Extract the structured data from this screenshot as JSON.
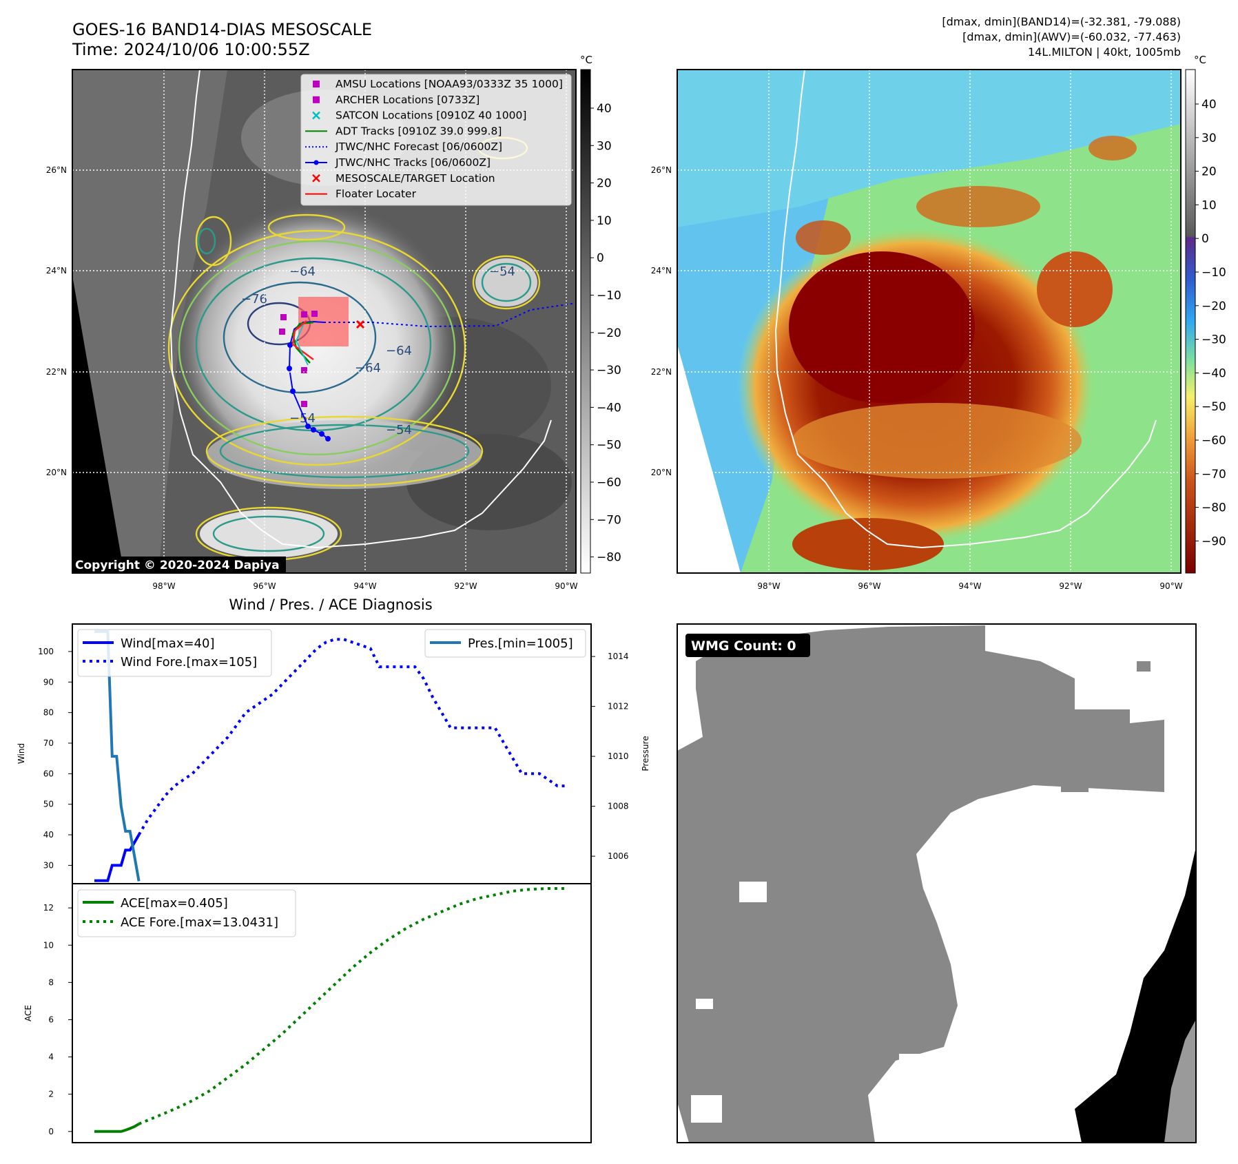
{
  "header": {
    "title": "GOES-16 BAND14-DIAS MESOSCALE",
    "time": "Time: 2024/10/06 10:00:55Z",
    "info_line1": "[dmax, dmin](BAND14)=(-32.381, -79.088)",
    "info_line2": "[dmax, dmin](AWV)=(-60.032, -77.463)",
    "info_line3": "14L.MILTON | 40kt, 1005mb"
  },
  "map": {
    "lat_labels": [
      "26°N",
      "24°N",
      "22°N",
      "20°N"
    ],
    "lon_labels": [
      "98°W",
      "96°W",
      "94°W",
      "92°W",
      "90°W"
    ],
    "copyright": "Copyright © 2020-2024 Dapiya",
    "colorbar_unit": "°C",
    "band14_ticks": [
      "40",
      "30",
      "20",
      "10",
      "0",
      "−10",
      "−20",
      "−30",
      "−40",
      "−50",
      "−60",
      "−70",
      "−80"
    ],
    "awv_ticks": [
      "40",
      "30",
      "20",
      "10",
      "0",
      "−10",
      "−20",
      "−30",
      "−40",
      "−50",
      "−60",
      "−70",
      "−80",
      "−90"
    ],
    "contour_labels": [
      "−76",
      "−64",
      "−64",
      "−64",
      "−54",
      "−54",
      "−54"
    ],
    "legend": [
      {
        "label": "AMSU Locations [NOAA93/0333Z 35 1000]",
        "color": "#c000c0",
        "marker": "square"
      },
      {
        "label": "ARCHER Locations [0733Z]",
        "color": "#c000c0",
        "marker": "square"
      },
      {
        "label": "SATCON Locations [0910Z 40 1000]",
        "color": "#00bfbf",
        "marker": "x"
      },
      {
        "label": "ADT Tracks [0910Z 39.0 999.8]",
        "color": "#008000",
        "marker": "line"
      },
      {
        "label": "JTWC/NHC Forecast [06/0600Z]",
        "color": "#0000ff",
        "marker": "dotted"
      },
      {
        "label": "JTWC/NHC Tracks [06/0600Z]",
        "color": "#0000ff",
        "marker": "line-dot"
      },
      {
        "label": "MESOSCALE/TARGET Location",
        "color": "#ff0000",
        "marker": "x"
      },
      {
        "label": "Floater Locater",
        "color": "#ff0000",
        "marker": "line"
      }
    ]
  },
  "diag": {
    "title": "Wind / Pres. / ACE Diagnosis",
    "wind_ylabel": "Wind",
    "pres_ylabel": "Pressure",
    "ace_ylabel": "ACE",
    "legend_wind": "Wind[max=40]",
    "legend_wind_fore": "Wind Fore.[max=105]",
    "legend_pres": "Pres.[min=1005]",
    "legend_ace": "ACE[max=0.405]",
    "legend_ace_fore": "ACE Fore.[max=13.0431]",
    "wind_ticks": [
      "100",
      "90",
      "80",
      "70",
      "60",
      "50",
      "40",
      "30"
    ],
    "pres_ticks": [
      "1014",
      "1012",
      "1010",
      "1008",
      "1006"
    ],
    "ace_ticks": [
      "12",
      "10",
      "8",
      "6",
      "4",
      "2",
      "0"
    ]
  },
  "wmg": {
    "badge": "WMG Count: 0"
  },
  "chart_data": [
    {
      "type": "line",
      "panel": "wind",
      "ylim": [
        24,
        109
      ],
      "series": [
        {
          "name": "Wind[max=40]",
          "color": "#0000ff",
          "style": "solid",
          "x": [
            0,
            1,
            2,
            3,
            4,
            5,
            6,
            7,
            8,
            9,
            10
          ],
          "values": [
            25,
            25,
            25,
            25,
            30,
            30,
            30,
            35,
            35,
            37.5,
            40
          ]
        },
        {
          "name": "Wind Fore.[max=105]",
          "color": "#0000ff",
          "style": "dotted",
          "x": [
            10,
            12,
            14,
            16,
            18,
            20,
            22,
            24,
            26,
            28,
            30,
            32,
            34,
            36,
            38,
            40,
            42,
            44,
            46,
            48,
            50,
            52,
            54,
            56,
            58,
            60,
            62,
            64,
            66,
            68,
            70,
            72,
            74,
            76,
            78,
            80,
            82,
            84,
            86,
            88,
            90,
            92,
            94,
            96,
            98,
            100,
            102,
            104,
            106
          ],
          "values": [
            40,
            45,
            49,
            53,
            56,
            58,
            60,
            63,
            66,
            69,
            72,
            76,
            80,
            82,
            84,
            86,
            89,
            92,
            95,
            98,
            101,
            103,
            104,
            104,
            103,
            102,
            101,
            95,
            95,
            95,
            95,
            95,
            91,
            85,
            80,
            75,
            75,
            75,
            75,
            75,
            75,
            70,
            65,
            60,
            60,
            60,
            58,
            56,
            56
          ]
        }
      ]
    },
    {
      "type": "line",
      "panel": "pressure",
      "ylim": [
        1004.9,
        1015.3
      ],
      "series": [
        {
          "name": "Pres.[min=1005]",
          "color": "#1f77b4",
          "style": "solid",
          "x": [
            0,
            1,
            2,
            3,
            4,
            5,
            6,
            7,
            8,
            9,
            10
          ],
          "values": [
            1015,
            1015,
            1015,
            1015,
            1010,
            1010,
            1008,
            1007,
            1007,
            1006,
            1005
          ]
        }
      ]
    },
    {
      "type": "line",
      "panel": "ace",
      "ylim": [
        -0.6,
        13.3
      ],
      "series": [
        {
          "name": "ACE[max=0.405]",
          "color": "#008000",
          "style": "solid",
          "x": [
            0,
            1,
            2,
            3,
            4,
            5,
            6,
            7,
            8,
            9,
            10
          ],
          "values": [
            0,
            0,
            0,
            0,
            0,
            0,
            0,
            0.07,
            0.16,
            0.26,
            0.405
          ]
        },
        {
          "name": "ACE Fore.[max=13.0431]",
          "color": "#008000",
          "style": "dotted",
          "x": [
            10,
            14,
            18,
            22,
            26,
            30,
            34,
            38,
            42,
            46,
            50,
            54,
            58,
            62,
            66,
            70,
            74,
            78,
            82,
            86,
            90,
            94,
            98,
            102,
            106
          ],
          "values": [
            0.405,
            0.8,
            1.2,
            1.65,
            2.2,
            2.9,
            3.6,
            4.4,
            5.2,
            6.1,
            7.0,
            7.9,
            8.8,
            9.6,
            10.3,
            10.9,
            11.4,
            11.8,
            12.2,
            12.5,
            12.7,
            12.9,
            13.0,
            13.04,
            13.04
          ]
        }
      ]
    }
  ]
}
